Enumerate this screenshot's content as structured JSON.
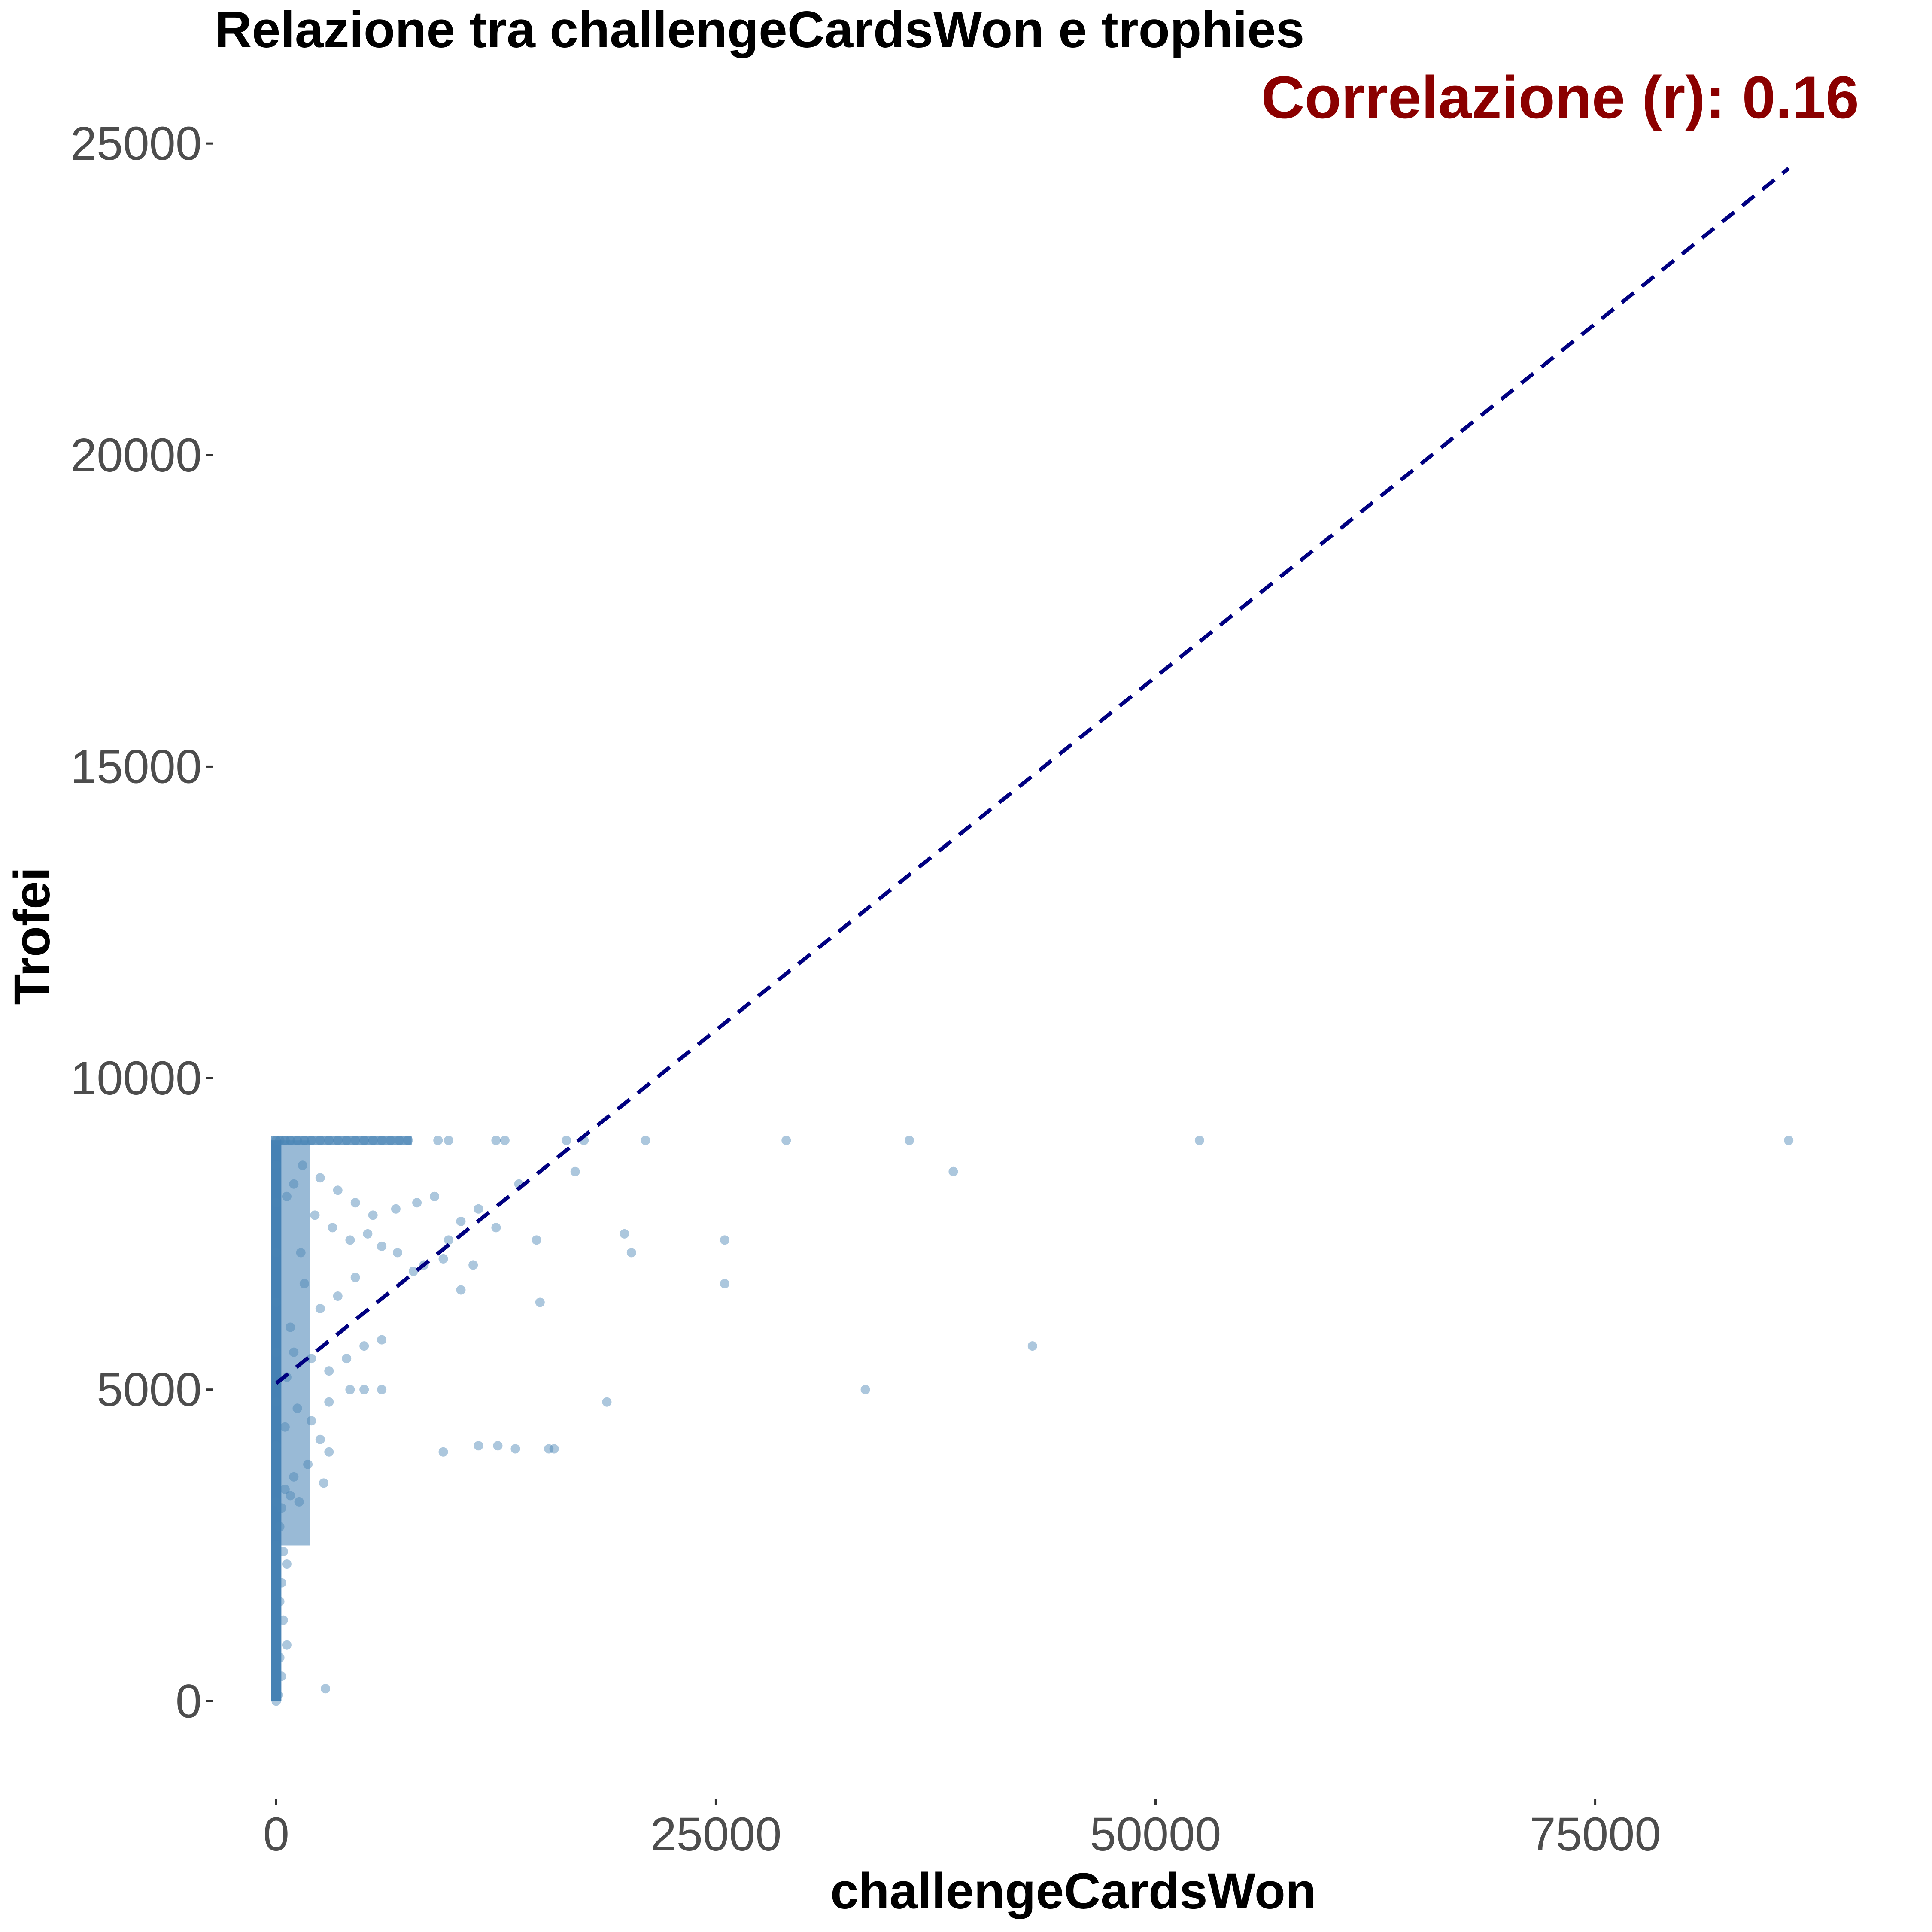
{
  "chart_data": {
    "type": "scatter",
    "title": "Relazione tra challengeCardsWon e trophies",
    "xlabel": "challengeCardsWon",
    "ylabel": "Trofei",
    "annotation": "Correlazione (r): 0.16",
    "xlim": [
      -3500,
      90000
    ],
    "ylim": [
      -1500,
      26200
    ],
    "x_ticks": [
      0,
      25000,
      50000,
      75000
    ],
    "y_ticks": [
      0,
      5000,
      10000,
      15000,
      20000,
      25000
    ],
    "x_tick_labels": [
      "0",
      "25000",
      "50000",
      "75000"
    ],
    "y_tick_labels": [
      "0",
      "5000",
      "10000",
      "15000",
      "20000",
      "25000"
    ],
    "grid": false,
    "legend": "none",
    "colors": {
      "points": "#4682b4",
      "trend_line": "#000080",
      "annotation": "#8b0000"
    },
    "trend_line": {
      "style": "dashed",
      "x": [
        0,
        86000
      ],
      "y": [
        5100,
        24600
      ]
    },
    "points": [
      [
        0,
        9000
      ],
      [
        200,
        9000
      ],
      [
        500,
        9000
      ],
      [
        800,
        9000
      ],
      [
        1200,
        9000
      ],
      [
        1600,
        9000
      ],
      [
        2000,
        9000
      ],
      [
        2500,
        9000
      ],
      [
        3000,
        9000
      ],
      [
        3500,
        9000
      ],
      [
        4000,
        9000
      ],
      [
        4500,
        9000
      ],
      [
        5000,
        9000
      ],
      [
        5500,
        9000
      ],
      [
        6000,
        9000
      ],
      [
        6500,
        9000
      ],
      [
        7000,
        9000
      ],
      [
        7500,
        9000
      ],
      [
        9200,
        9000
      ],
      [
        9800,
        9000
      ],
      [
        12500,
        9000
      ],
      [
        13000,
        9000
      ],
      [
        16500,
        9000
      ],
      [
        17500,
        9000
      ],
      [
        21000,
        9000
      ],
      [
        29000,
        9000
      ],
      [
        36000,
        9000
      ],
      [
        52500,
        9000
      ],
      [
        86000,
        9000
      ],
      [
        38500,
        8500
      ],
      [
        17000,
        8500
      ],
      [
        13800,
        8300
      ],
      [
        9000,
        8100
      ],
      [
        8000,
        8000
      ],
      [
        6800,
        7900
      ],
      [
        5500,
        7800
      ],
      [
        4500,
        8000
      ],
      [
        3500,
        8200
      ],
      [
        2500,
        8400
      ],
      [
        1500,
        8600
      ],
      [
        1000,
        8300
      ],
      [
        600,
        8100
      ],
      [
        11500,
        7900
      ],
      [
        12500,
        7600
      ],
      [
        10500,
        7700
      ],
      [
        14800,
        7400
      ],
      [
        19800,
        7500
      ],
      [
        20200,
        7200
      ],
      [
        25500,
        7400
      ],
      [
        25500,
        6700
      ],
      [
        11200,
        7000
      ],
      [
        9800,
        7400
      ],
      [
        9500,
        7100
      ],
      [
        8400,
        7000
      ],
      [
        7800,
        6900
      ],
      [
        6900,
        7200
      ],
      [
        6000,
        7300
      ],
      [
        5200,
        7500
      ],
      [
        4200,
        7400
      ],
      [
        3200,
        7600
      ],
      [
        2200,
        7800
      ],
      [
        1400,
        7200
      ],
      [
        4500,
        6800
      ],
      [
        3500,
        6500
      ],
      [
        2500,
        6300
      ],
      [
        1600,
        6700
      ],
      [
        800,
        6000
      ],
      [
        10500,
        6600
      ],
      [
        15000,
        6400
      ],
      [
        6000,
        5800
      ],
      [
        5000,
        5700
      ],
      [
        4000,
        5500
      ],
      [
        3000,
        5300
      ],
      [
        2000,
        5500
      ],
      [
        1000,
        5600
      ],
      [
        600,
        5200
      ],
      [
        43000,
        5700
      ],
      [
        33500,
        5000
      ],
      [
        18800,
        4800
      ],
      [
        6000,
        5000
      ],
      [
        5000,
        5000
      ],
      [
        4200,
        5000
      ],
      [
        3000,
        4800
      ],
      [
        2000,
        4500
      ],
      [
        1200,
        4700
      ],
      [
        500,
        4400
      ],
      [
        9500,
        4000
      ],
      [
        11500,
        4100
      ],
      [
        12600,
        4100
      ],
      [
        13600,
        4050
      ],
      [
        15500,
        4050
      ],
      [
        15800,
        4050
      ],
      [
        3000,
        4000
      ],
      [
        2500,
        4200
      ],
      [
        1800,
        3800
      ],
      [
        1000,
        3600
      ],
      [
        500,
        3400
      ],
      [
        300,
        3100
      ],
      [
        800,
        3300
      ],
      [
        2700,
        3500
      ],
      [
        1300,
        3200
      ],
      [
        200,
        2800
      ],
      [
        400,
        2400
      ],
      [
        600,
        2200
      ],
      [
        300,
        1900
      ],
      [
        200,
        1600
      ],
      [
        400,
        1300
      ],
      [
        600,
        900
      ],
      [
        200,
        700
      ],
      [
        300,
        400
      ],
      [
        2800,
        200
      ],
      [
        100,
        100
      ],
      [
        0,
        0
      ],
      [
        0,
        300
      ],
      [
        0,
        700
      ],
      [
        0,
        1200
      ],
      [
        0,
        1800
      ],
      [
        0,
        2500
      ],
      [
        0,
        3200
      ],
      [
        0,
        4100
      ],
      [
        0,
        4800
      ],
      [
        0,
        5600
      ],
      [
        0,
        6400
      ],
      [
        0,
        7200
      ],
      [
        0,
        8000
      ],
      [
        0,
        8600
      ]
    ]
  }
}
